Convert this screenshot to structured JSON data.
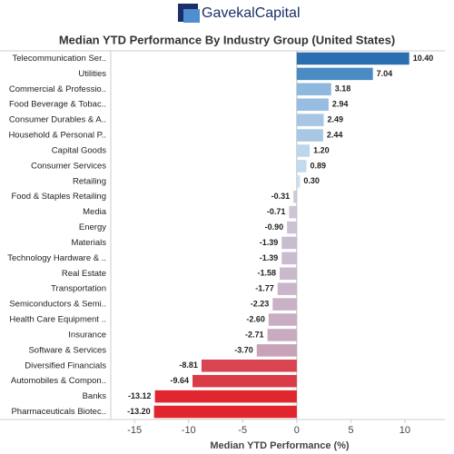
{
  "brand": {
    "left": "Gavekal",
    "right": "Capital"
  },
  "chart_data": {
    "type": "hbar",
    "title": "Median YTD Performance By Industry Group (United States)",
    "x_label": "Median YTD Performance (%)",
    "categories": [
      "Telecommunication Ser..",
      "Utilities",
      "Commercial & Professio..",
      "Food Beverage & Tobac..",
      "Consumer Durables & A..",
      "Household & Personal P..",
      "Capital Goods",
      "Consumer Services",
      "Retailing",
      "Food & Staples Retailing",
      "Media",
      "Energy",
      "Materials",
      "Technology Hardware & ..",
      "Real Estate",
      "Transportation",
      "Semiconductors & Semi..",
      "Health Care Equipment ..",
      "Insurance",
      "Software & Services",
      "Diversified Financials",
      "Automobiles & Compon..",
      "Banks",
      "Pharmaceuticals Biotec.."
    ],
    "values": [
      10.4,
      7.04,
      3.18,
      2.94,
      2.49,
      2.44,
      1.2,
      0.89,
      0.3,
      -0.31,
      -0.71,
      -0.9,
      -1.39,
      -1.39,
      -1.58,
      -1.77,
      -2.23,
      -2.6,
      -2.71,
      -3.7,
      -8.81,
      -9.64,
      -13.12,
      -13.2
    ],
    "value_labels": [
      "10.40",
      "7.04",
      "3.18",
      "2.94",
      "2.49",
      "2.44",
      "1.20",
      "0.89",
      "0.30",
      "-0.31",
      "-0.71",
      "-0.90",
      "-1.39",
      "-1.39",
      "-1.58",
      "-1.77",
      "-2.23",
      "-2.60",
      "-2.71",
      "-3.70",
      "-8.81",
      "-9.64",
      "-13.12",
      "-13.20"
    ],
    "colors": [
      "#2b6fb0",
      "#4a8bc3",
      "#8fb8dd",
      "#98bde0",
      "#a6c6e4",
      "#a8c7e5",
      "#bed6ec",
      "#c3d9ed",
      "#cadff0",
      "#cfc8d8",
      "#cdc4d6",
      "#cbc2d4",
      "#c9bcd0",
      "#c9bcd0",
      "#c9b9cd",
      "#c9b6ca",
      "#c9b1c6",
      "#c9adc2",
      "#c9abc0",
      "#c8a2b8",
      "#d84550",
      "#da3c47",
      "#e0262f",
      "#e0252e"
    ],
    "xlim": [
      -17.2,
      13.7
    ],
    "xticks": [
      -15,
      -10,
      -5,
      0,
      5,
      10
    ]
  }
}
